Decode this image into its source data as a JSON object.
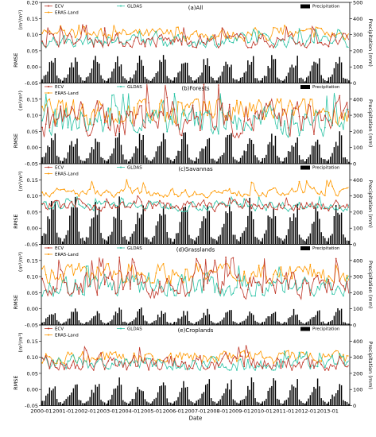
{
  "figure": {
    "xlabel": "Date",
    "x_ticks": [
      "2000-01",
      "2001-01",
      "2002-01",
      "2003-01",
      "2004-01",
      "2005-01",
      "2006-01",
      "2007-01",
      "2008-01",
      "2009-01",
      "2010-01",
      "2011-01",
      "2012-01",
      "2013-01"
    ],
    "left_ylabel_main": "RMSE",
    "left_ylabel_unit": "(m³/m³)",
    "right_ylabel": "Precipitation (mm)",
    "legend": {
      "ecv": "ECV",
      "era5": "ERA5-Land",
      "gldas": "GLDAS",
      "precip": "Precipitation"
    },
    "colors": {
      "ecv": "#c0392b",
      "era5": "#ff9900",
      "gldas": "#2ec4a6",
      "precip": "#000000",
      "green_overlap": "#3a8a2a"
    }
  },
  "chart_data": [
    {
      "type": "line",
      "title": "(a)All",
      "x_range": [
        "2000-01",
        "2013-12"
      ],
      "ylim": [
        -0.05,
        0.2
      ],
      "yticks": [
        -0.05,
        0.0,
        0.05,
        0.1,
        0.15,
        0.2
      ],
      "y2lim": [
        0,
        500
      ],
      "y2ticks": [
        0,
        100,
        200,
        300,
        400,
        500
      ],
      "series": [
        {
          "name": "ECV",
          "approx_level": 0.08,
          "approx_range": [
            0.06,
            0.13
          ]
        },
        {
          "name": "ERA5-Land",
          "approx_level": 0.1,
          "approx_range": [
            0.08,
            0.13
          ]
        },
        {
          "name": "GLDAS",
          "approx_level": 0.08,
          "approx_range": [
            0.06,
            0.12
          ]
        },
        {
          "name": "Precipitation",
          "type": "bar",
          "approx_range_mm": [
            10,
            220
          ],
          "seasonal_peak_mm": 170
        }
      ]
    },
    {
      "type": "line",
      "title": "(b)Forests",
      "x_range": [
        "2000-01",
        "2013-12"
      ],
      "ylim": [
        -0.05,
        0.2
      ],
      "yticks": [
        -0.05,
        0.0,
        0.05,
        0.1,
        0.15,
        0.2
      ],
      "y2lim": [
        0,
        500
      ],
      "y2ticks": [
        0,
        100,
        200,
        300,
        400,
        500
      ],
      "series": [
        {
          "name": "ECV",
          "approx_level": 0.09,
          "approx_range": [
            0.03,
            0.2
          ]
        },
        {
          "name": "ERA5-Land",
          "approx_level": 0.11,
          "approx_range": [
            0.07,
            0.15
          ]
        },
        {
          "name": "GLDAS",
          "approx_level": 0.08,
          "approx_range": [
            0.02,
            0.17
          ]
        },
        {
          "name": "Precipitation",
          "type": "bar",
          "approx_range_mm": [
            10,
            230
          ],
          "seasonal_peak_mm": 190
        }
      ]
    },
    {
      "type": "line",
      "title": "(c)Savannas",
      "x_range": [
        "2000-01",
        "2013-12"
      ],
      "ylim": [
        -0.05,
        0.2
      ],
      "yticks": [
        -0.05,
        0.0,
        0.05,
        0.1,
        0.15,
        0.2
      ],
      "y2lim": [
        0,
        500
      ],
      "y2ticks": [
        0,
        100,
        200,
        300,
        400,
        500
      ],
      "series": [
        {
          "name": "ECV",
          "approx_level": 0.07,
          "approx_range": [
            0.05,
            0.1
          ]
        },
        {
          "name": "ERA5-Land",
          "approx_level": 0.11,
          "approx_range": [
            0.09,
            0.15
          ]
        },
        {
          "name": "GLDAS",
          "approx_level": 0.07,
          "approx_range": [
            0.05,
            0.1
          ]
        },
        {
          "name": "Precipitation",
          "type": "bar",
          "approx_range_mm": [
            10,
            300
          ],
          "seasonal_peak_mm": 280
        }
      ]
    },
    {
      "type": "line",
      "title": "(d)Grasslands",
      "x_range": [
        "2000-01",
        "2013-12"
      ],
      "ylim": [
        -0.05,
        0.2
      ],
      "yticks": [
        -0.05,
        0.0,
        0.05,
        0.1,
        0.15,
        0.2
      ],
      "y2lim": [
        0,
        500
      ],
      "y2ticks": [
        0,
        100,
        200,
        300,
        400,
        500
      ],
      "series": [
        {
          "name": "ECV",
          "approx_level": 0.07,
          "approx_range": [
            0.03,
            0.16
          ]
        },
        {
          "name": "ERA5-Land",
          "approx_level": 0.11,
          "approx_range": [
            0.08,
            0.14
          ]
        },
        {
          "name": "GLDAS",
          "approx_level": 0.07,
          "approx_range": [
            0.04,
            0.14
          ]
        },
        {
          "name": "Precipitation",
          "type": "bar",
          "approx_range_mm": [
            5,
            150
          ],
          "seasonal_peak_mm": 100
        }
      ]
    },
    {
      "type": "line",
      "title": "(e)Croplands",
      "x_range": [
        "2000-01",
        "2013-12"
      ],
      "ylim": [
        -0.05,
        0.2
      ],
      "yticks": [
        -0.05,
        0.0,
        0.05,
        0.1,
        0.15,
        0.2
      ],
      "y2lim": [
        0,
        500
      ],
      "y2ticks": [
        0,
        100,
        200,
        300,
        400,
        500
      ],
      "series": [
        {
          "name": "ECV",
          "approx_level": 0.08,
          "approx_range": [
            0.06,
            0.14
          ]
        },
        {
          "name": "ERA5-Land",
          "approx_level": 0.1,
          "approx_range": [
            0.08,
            0.12
          ]
        },
        {
          "name": "GLDAS",
          "approx_level": 0.08,
          "approx_range": [
            0.06,
            0.12
          ]
        },
        {
          "name": "Precipitation",
          "type": "bar",
          "approx_range_mm": [
            10,
            220
          ],
          "seasonal_peak_mm": 160
        }
      ]
    }
  ]
}
